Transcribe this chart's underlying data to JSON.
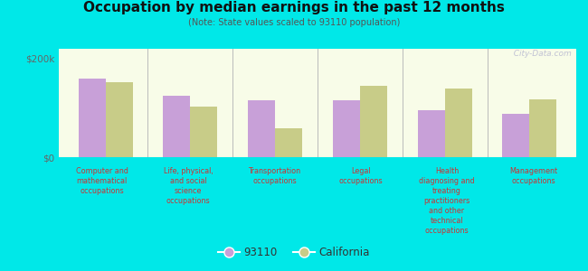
{
  "title": "Occupation by median earnings in the past 12 months",
  "subtitle": "(Note: State values scaled to 93110 population)",
  "categories": [
    "Computer and\nmathematical\noccupations",
    "Life, physical,\nand social\nscience\noccupations",
    "Transportation\noccupations",
    "Legal\noccupations",
    "Health\ndiagnosing and\ntreating\npractitioners\nand other\ntechnical\noccupations",
    "Management\noccupations"
  ],
  "values_93110": [
    160000,
    125000,
    115000,
    115000,
    95000,
    88000
  ],
  "values_california": [
    152000,
    103000,
    58000,
    145000,
    140000,
    118000
  ],
  "color_93110": "#c8a0d8",
  "color_california": "#c8cc88",
  "background_color": "#00e8e8",
  "plot_background_top": "#e8f0c8",
  "plot_background_bot": "#f8fce8",
  "ylim": [
    0,
    220000
  ],
  "yticks": [
    0,
    200000
  ],
  "ytick_labels": [
    "$0",
    "$200k"
  ],
  "bar_width": 0.32,
  "legend_93110": "93110",
  "legend_california": "California",
  "watermark": "  City-Data.com"
}
